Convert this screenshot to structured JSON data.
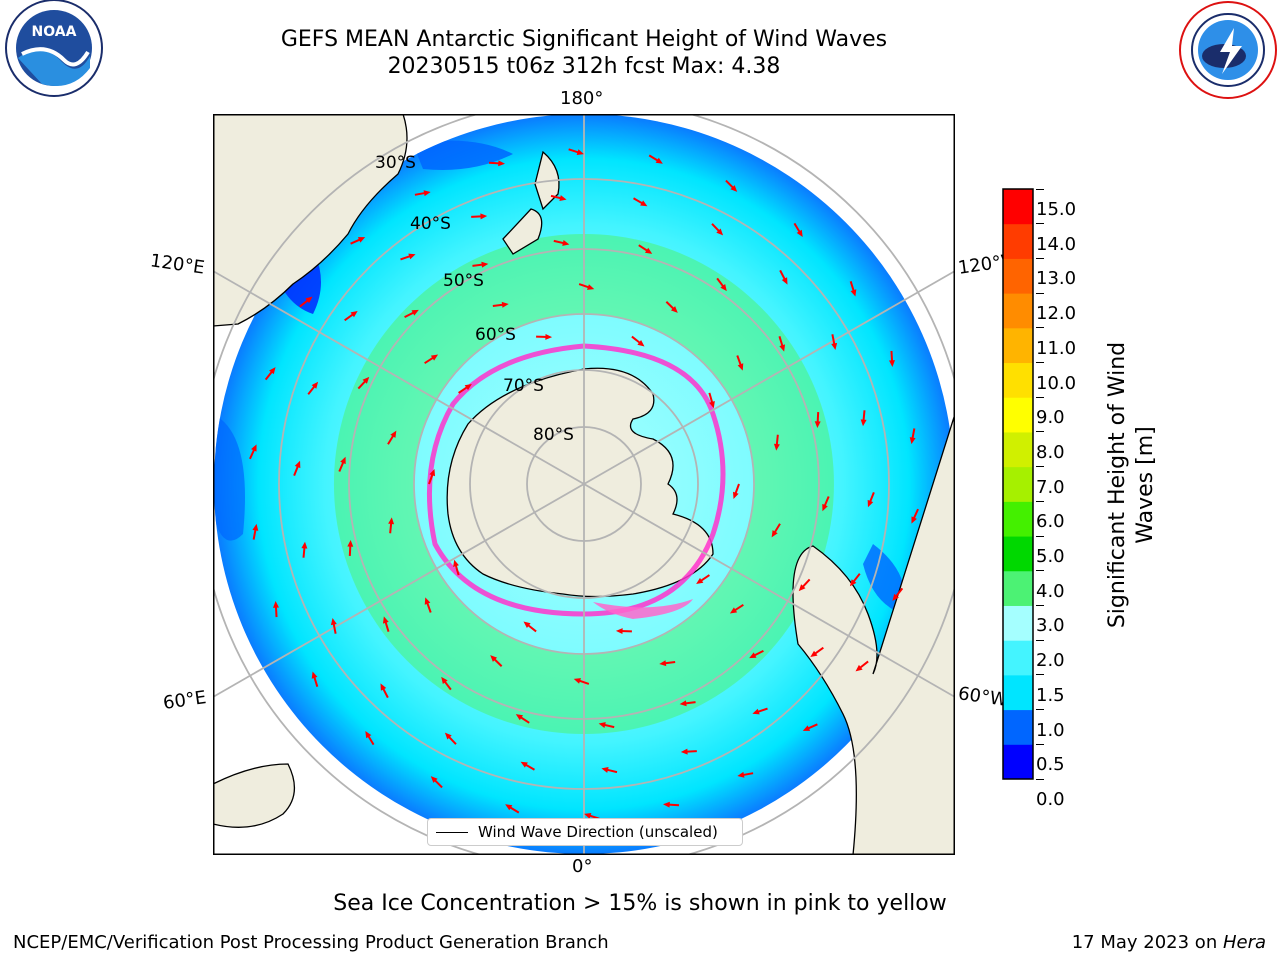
{
  "header": {
    "title_line1": "GEFS MEAN Antarctic Significant Height of Wind Waves",
    "title_line2": "20230515 t06z 312h fcst   Max: 4.38"
  },
  "logos": {
    "left": "noara-logo",
    "right": "nws-logo"
  },
  "map": {
    "lon_labels": {
      "top": "180°",
      "bottom": "0°",
      "left_upper": "120°E",
      "left_lower": "60°E",
      "right_upper": "120°W",
      "right_lower": "60°W"
    },
    "lat_labels": [
      "30°S",
      "40°S",
      "50°S",
      "60°S",
      "70°S",
      "80°S"
    ],
    "legend": "Wind Wave Direction (unscaled)",
    "colors": {
      "land": "#efedde",
      "grid": "#b4b4b4",
      "arrow": "#ff0000",
      "ice_edge": "#ff33cc"
    }
  },
  "colorbar": {
    "label": "Significant Height of Wind Waves [m]",
    "label_line1": "Significant Height of Wind",
    "label_line2": "Waves [m]",
    "ticks": [
      "0.0",
      "0.5",
      "1.0",
      "1.5",
      "2.0",
      "3.0",
      "4.0",
      "5.0",
      "6.0",
      "7.0",
      "8.0",
      "9.0",
      "10.0",
      "11.0",
      "12.0",
      "13.0",
      "14.0",
      "15.0"
    ],
    "colors": [
      "#0000ff",
      "#0066ff",
      "#00e5ff",
      "#44f4ff",
      "#a5ffff",
      "#4cf274",
      "#00d800",
      "#44f000",
      "#a6f000",
      "#d0f000",
      "#ffff00",
      "#ffe000",
      "#ffb400",
      "#ff8c00",
      "#ff6400",
      "#ff3c00",
      "#ff0000"
    ]
  },
  "footer": {
    "note": "Sea Ice Concentration > 15% is shown in pink to yellow",
    "left": "NCEP/EMC/Verification Post Processing Product Generation Branch",
    "right_prefix": "17 May 2023 on ",
    "right_machine": "Hera"
  }
}
